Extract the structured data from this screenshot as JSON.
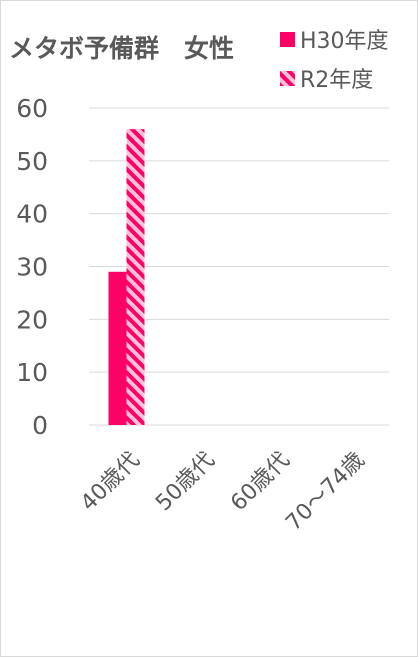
{
  "chart_data": {
    "type": "bar",
    "title": "メタボ予備群　女性",
    "categories": [
      "40歳代",
      "50歳代",
      "60歳代",
      "70～74歳"
    ],
    "series": [
      {
        "name": "H30年度",
        "values": [
          29,
          null,
          null,
          null
        ],
        "color": "#ff0066",
        "fill": "solid"
      },
      {
        "name": "R2年度",
        "values": [
          56,
          null,
          null,
          null
        ],
        "color": "#ff0066",
        "fill": "hatched"
      }
    ],
    "ylim": [
      0,
      60
    ],
    "yticks": [
      0,
      10,
      20,
      30,
      40,
      50,
      60
    ],
    "grid": true,
    "legend": "top-right"
  }
}
